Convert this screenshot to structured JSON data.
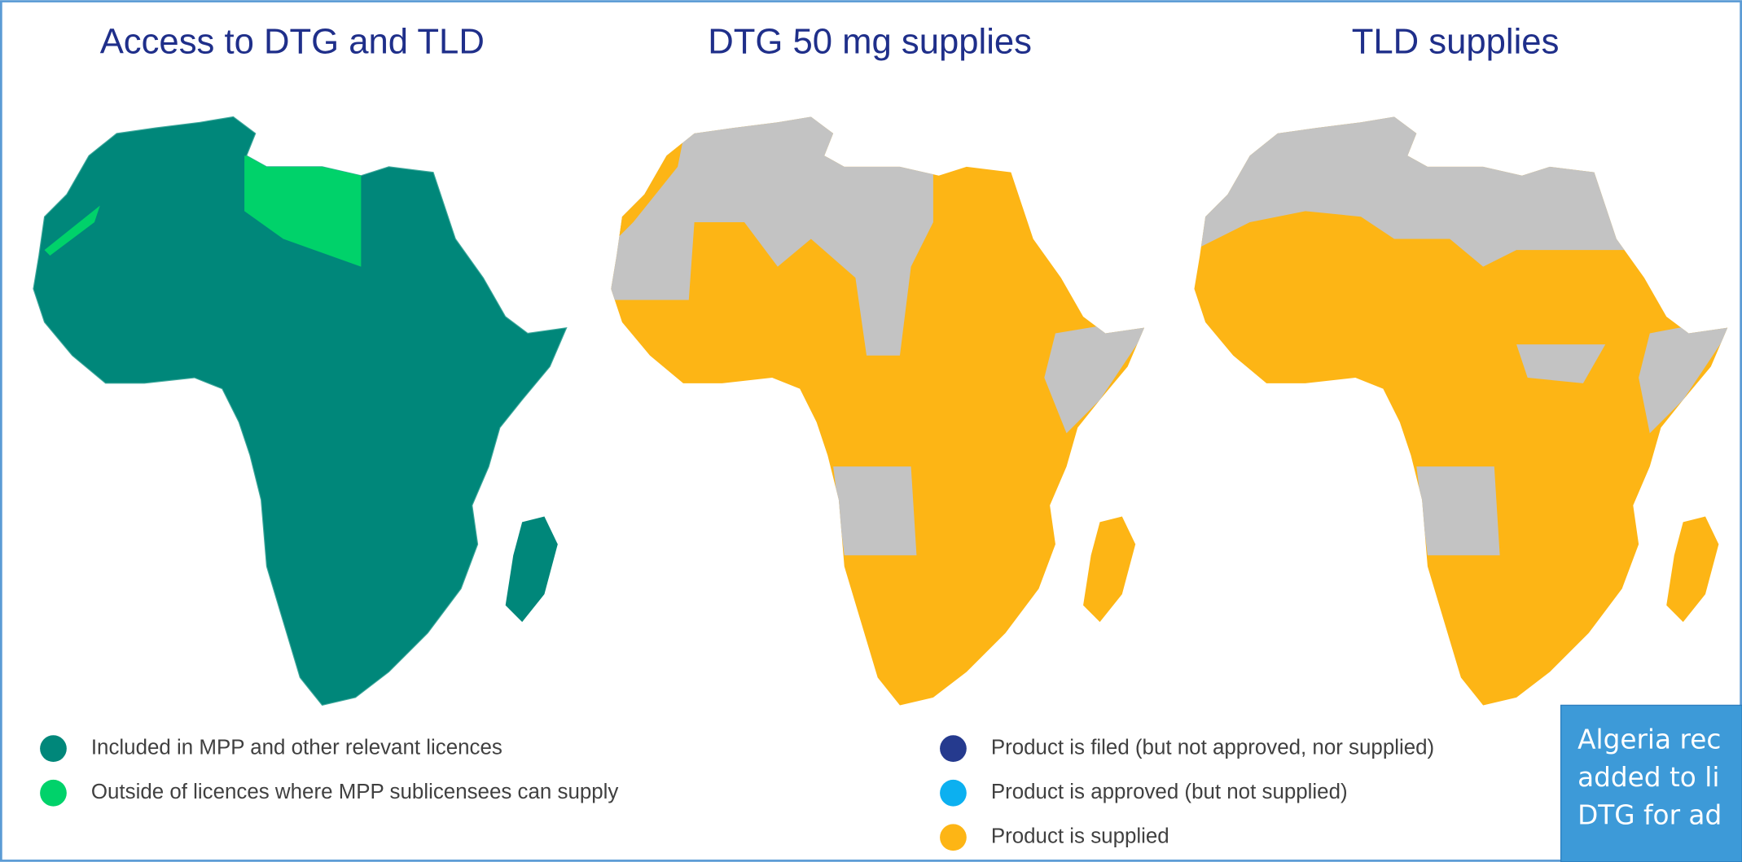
{
  "panels": [
    {
      "title": "Access to DTG and TLD"
    },
    {
      "title": "DTG 50 mg supplies"
    },
    {
      "title": "TLD supplies"
    }
  ],
  "legend_left": [
    "Included in MPP and other relevant licences",
    "Outside of licences where MPP sublicensees can supply"
  ],
  "legend_right": [
    "Product is filed (but not approved, nor supplied)",
    "Product is approved (but not supplied)",
    "Product is supplied"
  ],
  "callout": [
    "Algeria rec",
    "added to li",
    "DTG for ad"
  ]
}
